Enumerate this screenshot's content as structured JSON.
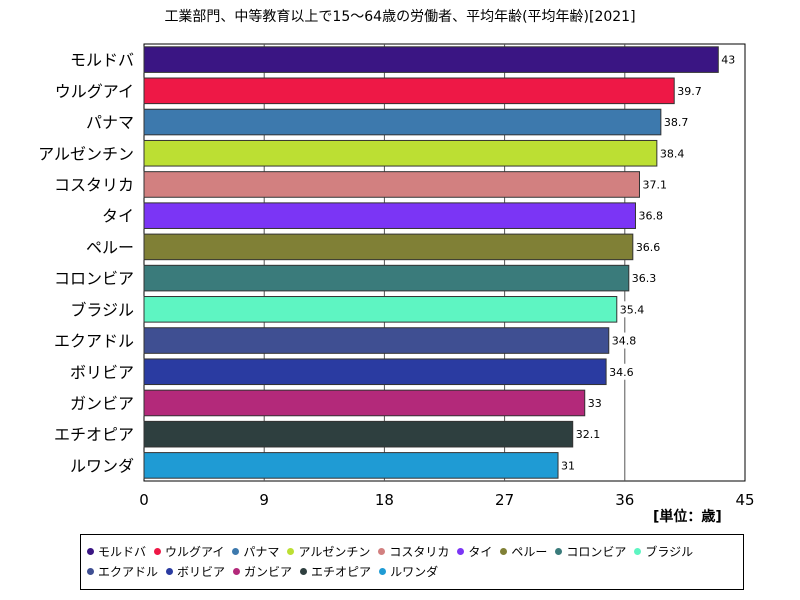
{
  "chart_data": {
    "type": "bar",
    "orientation": "horizontal",
    "title": "工業部門、中等教育以上で15～64歳の労働者、平均年齢(平均年齢)[2021]",
    "unit_label": "[単位：歳]",
    "categories": [
      "モルドバ",
      "ウルグアイ",
      "パナマ",
      "アルゼンチン",
      "コスタリカ",
      "タイ",
      "ペルー",
      "コロンビア",
      "ブラジル",
      "エクアドル",
      "ボリビア",
      "ガンビア",
      "エチオピア",
      "ルワンダ"
    ],
    "values": [
      43,
      39.7,
      38.7,
      38.4,
      37.1,
      36.8,
      36.6,
      36.3,
      35.4,
      34.8,
      34.6,
      33,
      32.1,
      31
    ],
    "value_labels": [
      "43",
      "39.7",
      "38.7",
      "38.4",
      "37.1",
      "36.8",
      "36.6",
      "36.3",
      "35.4",
      "34.8",
      "34.6",
      "33",
      "32.1",
      "31"
    ],
    "colors": [
      "#3a1583",
      "#ee1846",
      "#3d79ad",
      "#bcdf33",
      "#d28080",
      "#7b35f5",
      "#808036",
      "#3a7b7b",
      "#5ef5c2",
      "#3f4f92",
      "#2a3ba1",
      "#b3297a",
      "#2e3f3f",
      "#1f9bd4"
    ],
    "xlim": [
      0,
      45
    ],
    "xticks": [
      "0",
      "9",
      "18",
      "27",
      "36",
      "45"
    ],
    "grid": true,
    "legend_position": "bottom"
  }
}
